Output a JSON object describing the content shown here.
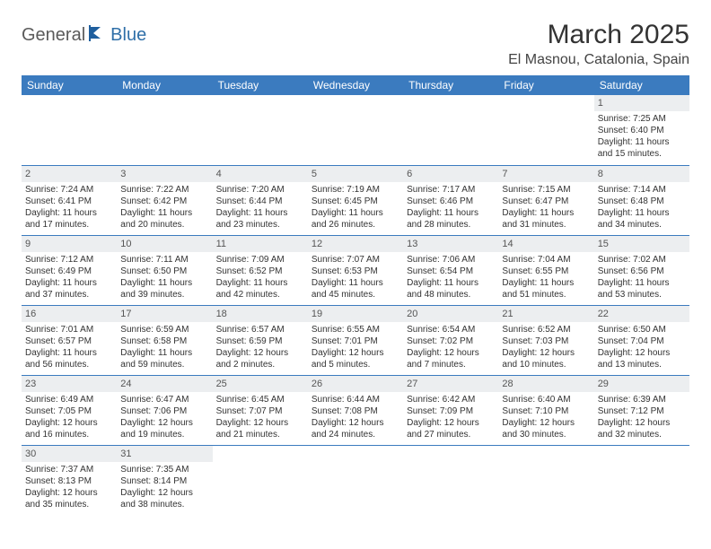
{
  "brand": {
    "part1": "General",
    "part2": "Blue"
  },
  "title": "March 2025",
  "location": "El Masnou, Catalonia, Spain",
  "colors": {
    "header_bg": "#3b7bbf",
    "header_text": "#ffffff",
    "border": "#3b7bbf",
    "daynum_bg": "#eceef0",
    "brand_gray": "#5a5a5a",
    "brand_blue": "#2f6fa8"
  },
  "dayNames": [
    "Sunday",
    "Monday",
    "Tuesday",
    "Wednesday",
    "Thursday",
    "Friday",
    "Saturday"
  ],
  "weeks": [
    [
      null,
      null,
      null,
      null,
      null,
      null,
      {
        "n": "1",
        "sr": "7:25 AM",
        "ss": "6:40 PM",
        "dl": "11 hours",
        "dl2": "and 15 minutes."
      }
    ],
    [
      {
        "n": "2",
        "sr": "7:24 AM",
        "ss": "6:41 PM",
        "dl": "11 hours",
        "dl2": "and 17 minutes."
      },
      {
        "n": "3",
        "sr": "7:22 AM",
        "ss": "6:42 PM",
        "dl": "11 hours",
        "dl2": "and 20 minutes."
      },
      {
        "n": "4",
        "sr": "7:20 AM",
        "ss": "6:44 PM",
        "dl": "11 hours",
        "dl2": "and 23 minutes."
      },
      {
        "n": "5",
        "sr": "7:19 AM",
        "ss": "6:45 PM",
        "dl": "11 hours",
        "dl2": "and 26 minutes."
      },
      {
        "n": "6",
        "sr": "7:17 AM",
        "ss": "6:46 PM",
        "dl": "11 hours",
        "dl2": "and 28 minutes."
      },
      {
        "n": "7",
        "sr": "7:15 AM",
        "ss": "6:47 PM",
        "dl": "11 hours",
        "dl2": "and 31 minutes."
      },
      {
        "n": "8",
        "sr": "7:14 AM",
        "ss": "6:48 PM",
        "dl": "11 hours",
        "dl2": "and 34 minutes."
      }
    ],
    [
      {
        "n": "9",
        "sr": "7:12 AM",
        "ss": "6:49 PM",
        "dl": "11 hours",
        "dl2": "and 37 minutes."
      },
      {
        "n": "10",
        "sr": "7:11 AM",
        "ss": "6:50 PM",
        "dl": "11 hours",
        "dl2": "and 39 minutes."
      },
      {
        "n": "11",
        "sr": "7:09 AM",
        "ss": "6:52 PM",
        "dl": "11 hours",
        "dl2": "and 42 minutes."
      },
      {
        "n": "12",
        "sr": "7:07 AM",
        "ss": "6:53 PM",
        "dl": "11 hours",
        "dl2": "and 45 minutes."
      },
      {
        "n": "13",
        "sr": "7:06 AM",
        "ss": "6:54 PM",
        "dl": "11 hours",
        "dl2": "and 48 minutes."
      },
      {
        "n": "14",
        "sr": "7:04 AM",
        "ss": "6:55 PM",
        "dl": "11 hours",
        "dl2": "and 51 minutes."
      },
      {
        "n": "15",
        "sr": "7:02 AM",
        "ss": "6:56 PM",
        "dl": "11 hours",
        "dl2": "and 53 minutes."
      }
    ],
    [
      {
        "n": "16",
        "sr": "7:01 AM",
        "ss": "6:57 PM",
        "dl": "11 hours",
        "dl2": "and 56 minutes."
      },
      {
        "n": "17",
        "sr": "6:59 AM",
        "ss": "6:58 PM",
        "dl": "11 hours",
        "dl2": "and 59 minutes."
      },
      {
        "n": "18",
        "sr": "6:57 AM",
        "ss": "6:59 PM",
        "dl": "12 hours",
        "dl2": "and 2 minutes."
      },
      {
        "n": "19",
        "sr": "6:55 AM",
        "ss": "7:01 PM",
        "dl": "12 hours",
        "dl2": "and 5 minutes."
      },
      {
        "n": "20",
        "sr": "6:54 AM",
        "ss": "7:02 PM",
        "dl": "12 hours",
        "dl2": "and 7 minutes."
      },
      {
        "n": "21",
        "sr": "6:52 AM",
        "ss": "7:03 PM",
        "dl": "12 hours",
        "dl2": "and 10 minutes."
      },
      {
        "n": "22",
        "sr": "6:50 AM",
        "ss": "7:04 PM",
        "dl": "12 hours",
        "dl2": "and 13 minutes."
      }
    ],
    [
      {
        "n": "23",
        "sr": "6:49 AM",
        "ss": "7:05 PM",
        "dl": "12 hours",
        "dl2": "and 16 minutes."
      },
      {
        "n": "24",
        "sr": "6:47 AM",
        "ss": "7:06 PM",
        "dl": "12 hours",
        "dl2": "and 19 minutes."
      },
      {
        "n": "25",
        "sr": "6:45 AM",
        "ss": "7:07 PM",
        "dl": "12 hours",
        "dl2": "and 21 minutes."
      },
      {
        "n": "26",
        "sr": "6:44 AM",
        "ss": "7:08 PM",
        "dl": "12 hours",
        "dl2": "and 24 minutes."
      },
      {
        "n": "27",
        "sr": "6:42 AM",
        "ss": "7:09 PM",
        "dl": "12 hours",
        "dl2": "and 27 minutes."
      },
      {
        "n": "28",
        "sr": "6:40 AM",
        "ss": "7:10 PM",
        "dl": "12 hours",
        "dl2": "and 30 minutes."
      },
      {
        "n": "29",
        "sr": "6:39 AM",
        "ss": "7:12 PM",
        "dl": "12 hours",
        "dl2": "and 32 minutes."
      }
    ],
    [
      {
        "n": "30",
        "sr": "7:37 AM",
        "ss": "8:13 PM",
        "dl": "12 hours",
        "dl2": "and 35 minutes."
      },
      {
        "n": "31",
        "sr": "7:35 AM",
        "ss": "8:14 PM",
        "dl": "12 hours",
        "dl2": "and 38 minutes."
      },
      null,
      null,
      null,
      null,
      null
    ]
  ],
  "labels": {
    "sunrise": "Sunrise: ",
    "sunset": "Sunset: ",
    "daylight": "Daylight: "
  }
}
